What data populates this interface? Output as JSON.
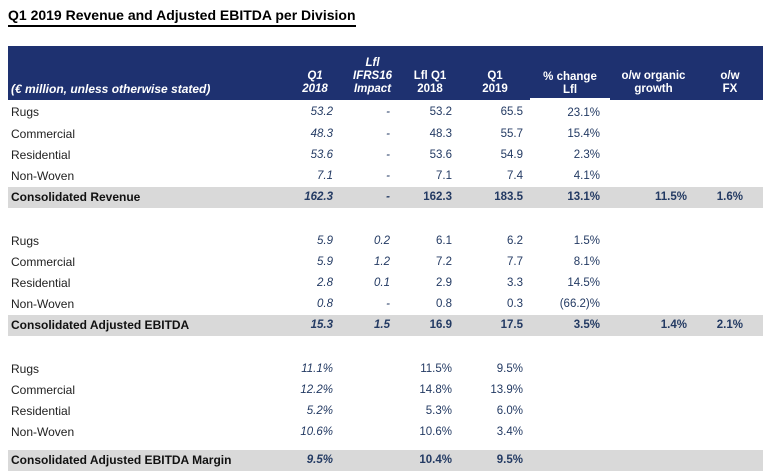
{
  "title": "Q1 2019 Revenue and Adjusted EBITDA per Division",
  "colors": {
    "header_bg": "#1e3170",
    "header_text": "#ffffff",
    "total_row_bg": "#d9d9d9",
    "value_text": "#233a63"
  },
  "table": {
    "header": {
      "unit_label": "(€ million, unless otherwise stated)",
      "cols": [
        {
          "id": "q1-2018",
          "lines": [
            "Q1",
            "2018"
          ]
        },
        {
          "id": "lfl-ifrs16-impact",
          "lines": [
            "Lfl",
            "IFRS16",
            "Impact"
          ]
        },
        {
          "id": "lfl-q1-2018",
          "lines": [
            "Lfl Q1",
            "2018"
          ]
        },
        {
          "id": "q1-2019",
          "lines": [
            "Q1",
            "2019"
          ]
        },
        {
          "id": "pct-change-lfl",
          "lines": [
            "% change",
            "Lfl"
          ]
        },
        {
          "id": "ow-organic-growth",
          "lines": [
            "o/w organic",
            "growth"
          ]
        },
        {
          "id": "ow-fx",
          "lines": [
            "o/w",
            "FX"
          ]
        }
      ]
    },
    "sections": {
      "revenue": {
        "rows": [
          {
            "label": "Rugs",
            "cells": [
              "53.2",
              "-",
              "53.2",
              "65.5",
              "23.1%",
              "",
              ""
            ]
          },
          {
            "label": "Commercial",
            "cells": [
              "48.3",
              "-",
              "48.3",
              "55.7",
              "15.4%",
              "",
              ""
            ]
          },
          {
            "label": "Residential",
            "cells": [
              "53.6",
              "-",
              "53.6",
              "54.9",
              "2.3%",
              "",
              ""
            ]
          },
          {
            "label": "Non-Woven",
            "cells": [
              "7.1",
              "-",
              "7.1",
              "7.4",
              "4.1%",
              "",
              ""
            ]
          }
        ],
        "total": {
          "label": "Consolidated Revenue",
          "cells": [
            "162.3",
            "-",
            "162.3",
            "183.5",
            "13.1%",
            "11.5%",
            "1.6%"
          ]
        }
      },
      "ebitda": {
        "rows": [
          {
            "label": "Rugs",
            "cells": [
              "5.9",
              "0.2",
              "6.1",
              "6.2",
              "1.5%",
              "",
              ""
            ]
          },
          {
            "label": "Commercial",
            "cells": [
              "5.9",
              "1.2",
              "7.2",
              "7.7",
              "8.1%",
              "",
              ""
            ]
          },
          {
            "label": "Residential",
            "cells": [
              "2.8",
              "0.1",
              "2.9",
              "3.3",
              "14.5%",
              "",
              ""
            ]
          },
          {
            "label": "Non-Woven",
            "cells": [
              "0.8",
              "-",
              "0.8",
              "0.3",
              "(66.2)%",
              "",
              ""
            ]
          }
        ],
        "total": {
          "label": "Consolidated Adjusted EBITDA",
          "cells": [
            "15.3",
            "1.5",
            "16.9",
            "17.5",
            "3.5%",
            "1.4%",
            "2.1%"
          ]
        }
      },
      "margin": {
        "rows": [
          {
            "label": "Rugs",
            "cells": [
              "11.1%",
              "",
              "11.5%",
              "9.5%",
              "",
              "",
              ""
            ]
          },
          {
            "label": "Commercial",
            "cells": [
              "12.2%",
              "",
              "14.8%",
              "13.9%",
              "",
              "",
              ""
            ]
          },
          {
            "label": "Residential",
            "cells": [
              "5.2%",
              "",
              "5.3%",
              "6.0%",
              "",
              "",
              ""
            ]
          },
          {
            "label": "Non-Woven",
            "cells": [
              "10.6%",
              "",
              "10.6%",
              "3.4%",
              "",
              "",
              ""
            ]
          }
        ],
        "total": {
          "label": "Consolidated Adjusted EBITDA Margin",
          "cells": [
            "9.5%",
            "",
            "10.4%",
            "9.5%",
            "",
            "",
            ""
          ]
        }
      }
    }
  }
}
